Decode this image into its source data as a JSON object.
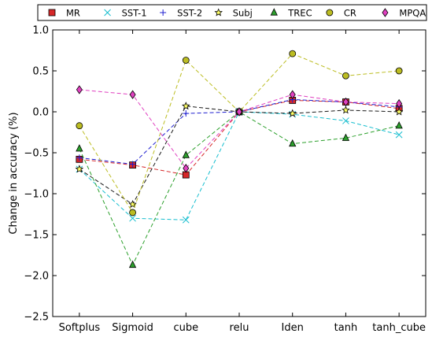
{
  "chart_data": {
    "type": "line",
    "categories": [
      "Softplus",
      "Sigmoid",
      "cube",
      "relu",
      "Iden",
      "tanh",
      "tanh_cube"
    ],
    "ylabel": "Change in accuracy (%)",
    "xlabel": "",
    "title": "",
    "ylim": [
      -2.5,
      1.0
    ],
    "yticks": [
      -2.5,
      -2.0,
      -1.5,
      -1.0,
      -0.5,
      0.0,
      0.5,
      1.0
    ],
    "ytick_labels": [
      "−2.5",
      "−2.0",
      "−1.5",
      "−1.0",
      "−0.5",
      "0.0",
      "0.5",
      "1.0"
    ],
    "grid": false,
    "legend_position": "top",
    "series": [
      {
        "name": "MR",
        "color": "#d62728",
        "marker": "square",
        "values": [
          -0.58,
          -0.65,
          -0.77,
          0.0,
          0.14,
          0.12,
          0.04
        ]
      },
      {
        "name": "SST-1",
        "color": "#17becf",
        "marker": "x",
        "values": [
          -0.7,
          -1.3,
          -1.32,
          0.0,
          -0.03,
          -0.11,
          -0.28
        ]
      },
      {
        "name": "SST-2",
        "color": "#1f1fd0",
        "marker": "plus",
        "values": [
          -0.56,
          -0.64,
          -0.02,
          0.0,
          0.15,
          0.12,
          0.06
        ]
      },
      {
        "name": "Subj",
        "color": "#1a1a1a",
        "marker": "star",
        "values": [
          -0.7,
          -1.13,
          0.07,
          0.0,
          -0.02,
          0.02,
          0.0
        ]
      },
      {
        "name": "TREC",
        "color": "#2ca02c",
        "marker": "triangle",
        "values": [
          -0.45,
          -1.87,
          -0.53,
          0.0,
          -0.39,
          -0.32,
          -0.17
        ]
      },
      {
        "name": "CR",
        "color": "#bcbd22",
        "marker": "circle",
        "values": [
          -0.17,
          -1.23,
          0.63,
          0.0,
          0.71,
          0.44,
          0.5
        ]
      },
      {
        "name": "MPQA",
        "color": "#e040c0",
        "marker": "diamond",
        "values": [
          0.27,
          0.21,
          -0.69,
          0.0,
          0.21,
          0.12,
          0.1
        ]
      }
    ]
  }
}
